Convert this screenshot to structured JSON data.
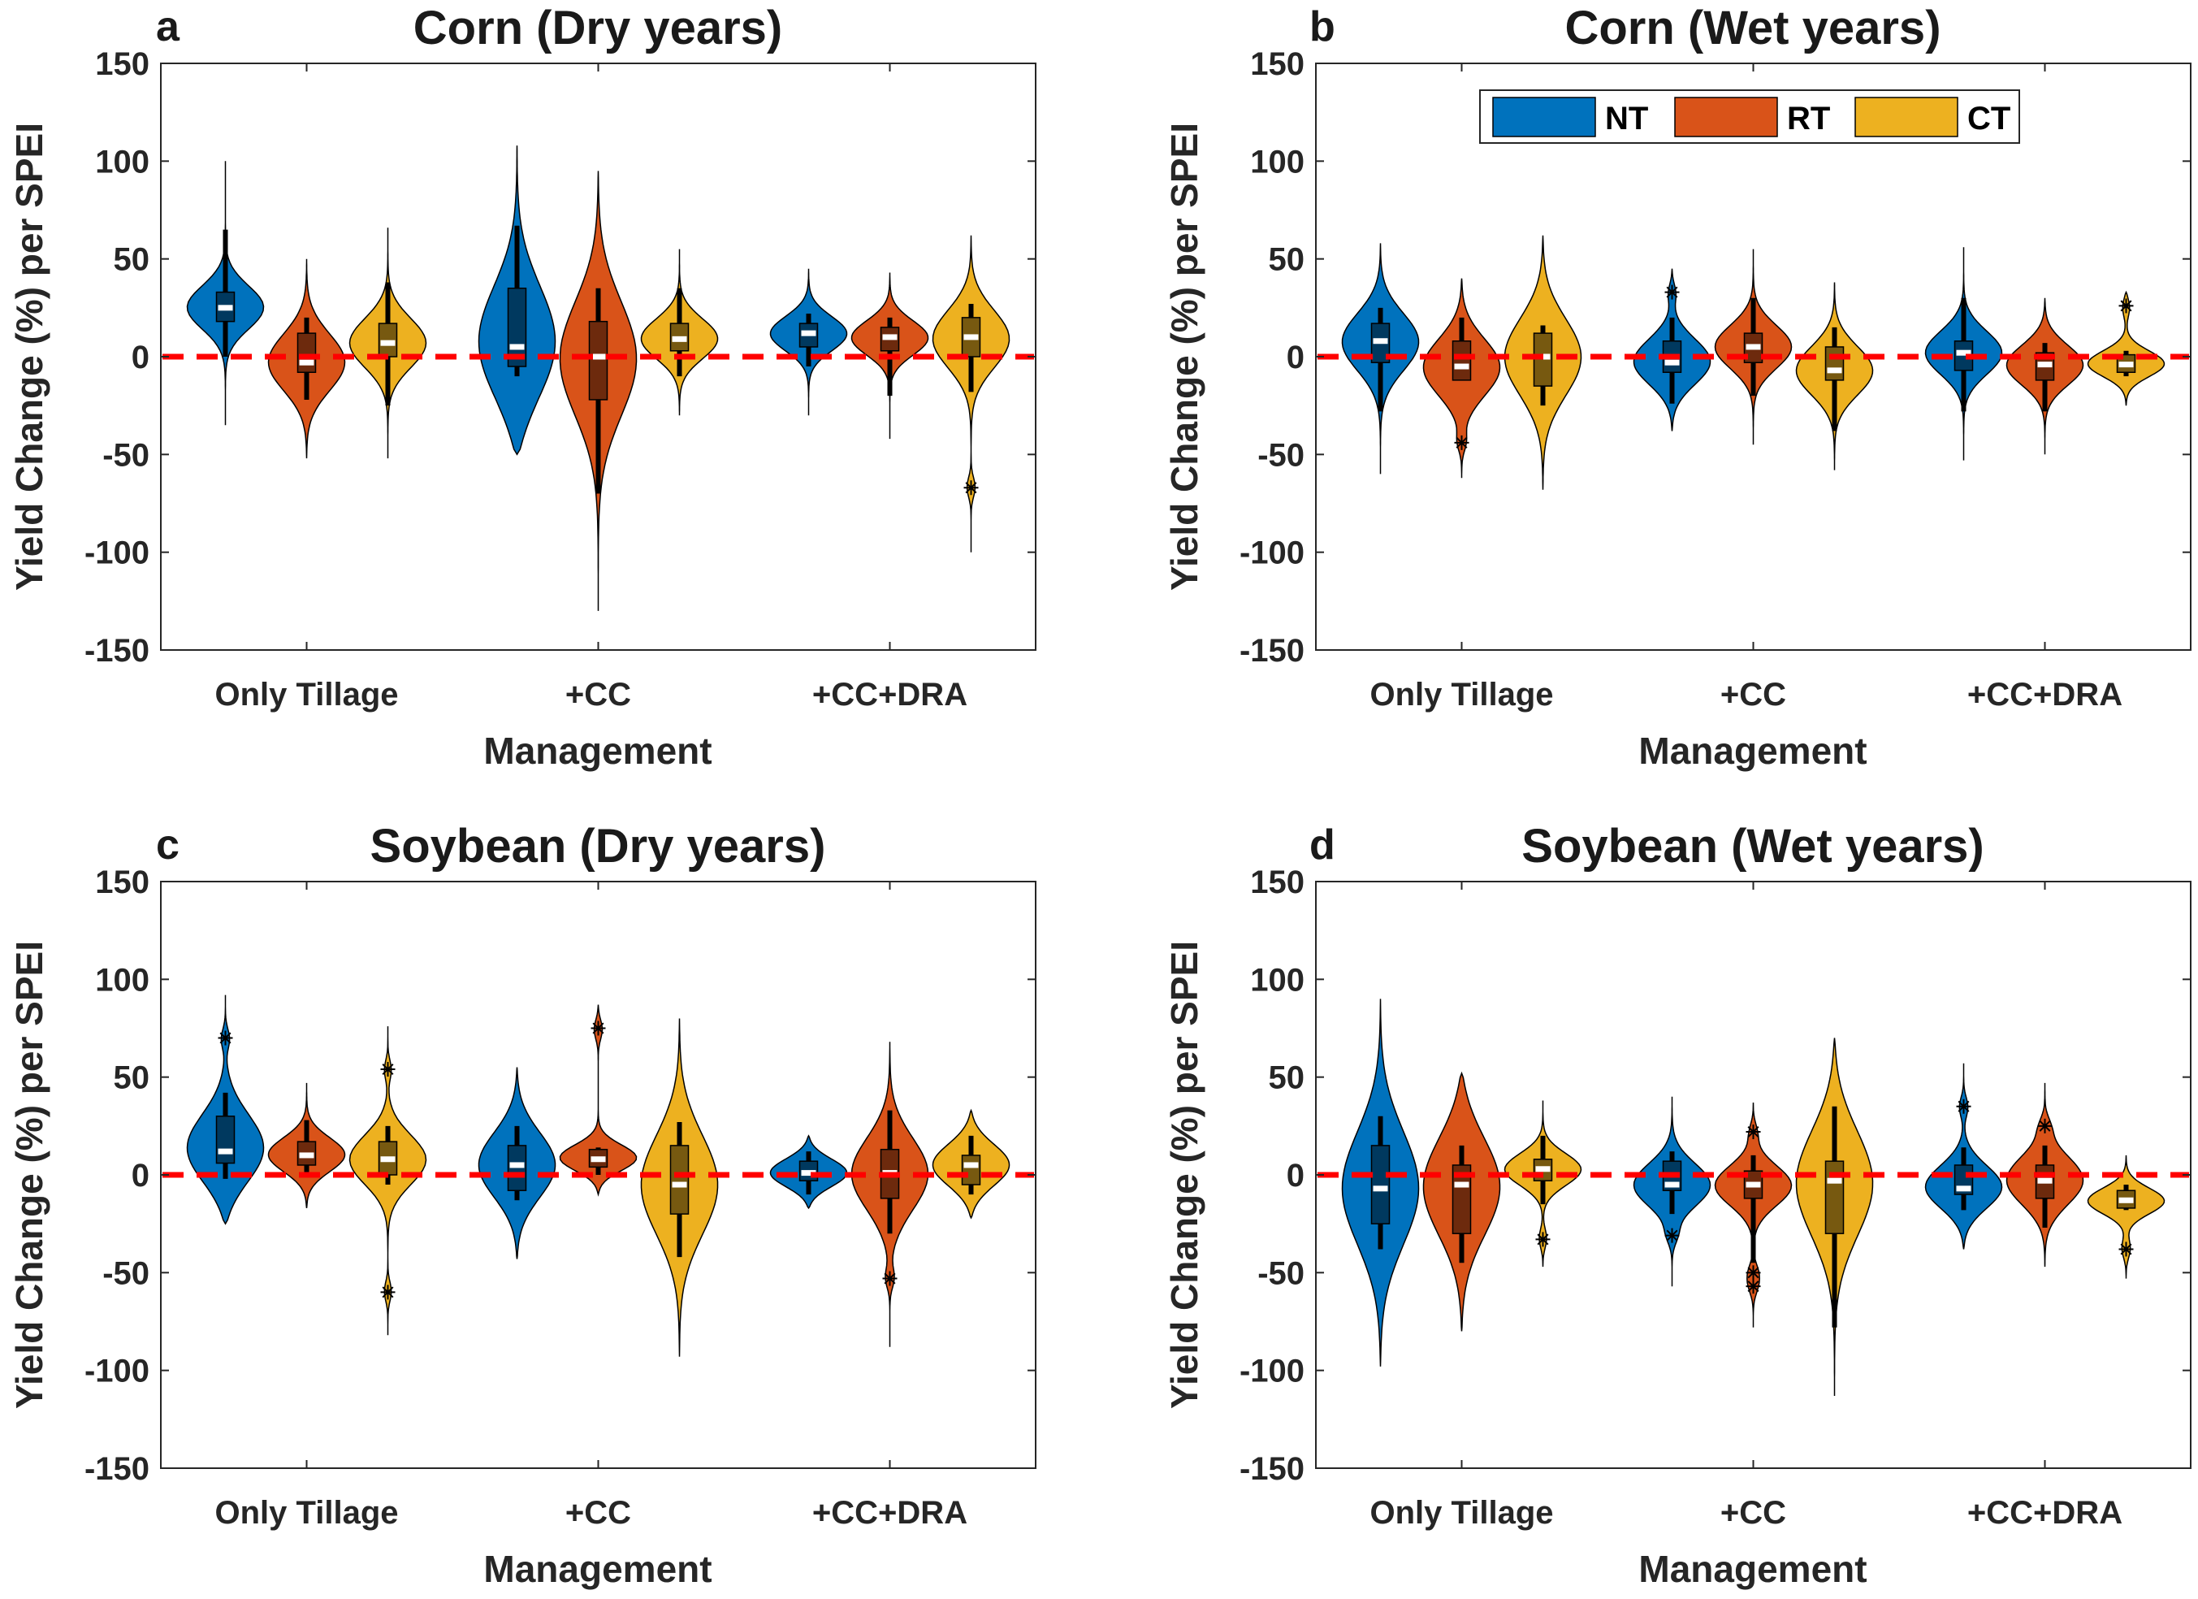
{
  "legend": [
    {
      "label": "NT",
      "color": "#0072BD"
    },
    {
      "label": "RT",
      "color": "#D95319"
    },
    {
      "label": "CT",
      "color": "#EDB120"
    }
  ],
  "reference_line_color": "#FF0000",
  "chart_data": [
    {
      "type": "violin",
      "panel_letter": "a",
      "title": "Corn (Dry years)",
      "xlabel": "Management",
      "ylabel": "Yield Change (%) per SPEI",
      "ylim": [
        -150,
        150
      ],
      "yticks": [
        150,
        100,
        50,
        0,
        -50,
        -100,
        -150
      ],
      "categories": [
        "Only Tillage",
        "+CC",
        "+CC+DRA"
      ],
      "reference_line_y": 0,
      "series": [
        {
          "name": "NT",
          "groups": [
            {
              "range": [
                -35,
                100
              ],
              "median": 25,
              "q1": 18,
              "q3": 33,
              "whisker": [
                0,
                65
              ],
              "outliers": []
            },
            {
              "range": [
                -50,
                108
              ],
              "median": 5,
              "q1": -5,
              "q3": 35,
              "whisker": [
                -10,
                67
              ],
              "outliers": []
            },
            {
              "range": [
                -30,
                45
              ],
              "median": 12,
              "q1": 5,
              "q3": 17,
              "whisker": [
                -5,
                22
              ],
              "outliers": []
            }
          ]
        },
        {
          "name": "RT",
          "groups": [
            {
              "range": [
                -52,
                50
              ],
              "median": -3,
              "q1": -8,
              "q3": 12,
              "whisker": [
                -22,
                20
              ],
              "outliers": []
            },
            {
              "range": [
                -130,
                95
              ],
              "median": 0,
              "q1": -22,
              "q3": 18,
              "whisker": [
                -70,
                35
              ],
              "outliers": []
            },
            {
              "range": [
                -42,
                43
              ],
              "median": 10,
              "q1": 3,
              "q3": 15,
              "whisker": [
                -20,
                20
              ],
              "outliers": []
            }
          ]
        },
        {
          "name": "CT",
          "groups": [
            {
              "range": [
                -52,
                66
              ],
              "median": 7,
              "q1": 0,
              "q3": 17,
              "whisker": [
                -25,
                38
              ],
              "outliers": []
            },
            {
              "range": [
                -30,
                55
              ],
              "median": 9,
              "q1": 3,
              "q3": 17,
              "whisker": [
                -10,
                35
              ],
              "outliers": []
            },
            {
              "range": [
                -100,
                62
              ],
              "median": 10,
              "q1": 0,
              "q3": 20,
              "whisker": [
                -18,
                27
              ],
              "outliers": [
                -67
              ]
            }
          ]
        }
      ]
    },
    {
      "type": "violin",
      "panel_letter": "b",
      "title": "Corn (Wet years)",
      "xlabel": "Management",
      "ylabel": "Yield Change (%) per SPEI",
      "ylim": [
        -150,
        150
      ],
      "yticks": [
        150,
        100,
        50,
        0,
        -50,
        -100,
        -150
      ],
      "categories": [
        "Only Tillage",
        "+CC",
        "+CC+DRA"
      ],
      "reference_line_y": 0,
      "series": [
        {
          "name": "NT",
          "groups": [
            {
              "range": [
                -60,
                58
              ],
              "median": 8,
              "q1": -3,
              "q3": 17,
              "whisker": [
                -28,
                25
              ],
              "outliers": []
            },
            {
              "range": [
                -38,
                45
              ],
              "median": -3,
              "q1": -8,
              "q3": 8,
              "whisker": [
                -24,
                20
              ],
              "outliers": [
                33
              ]
            },
            {
              "range": [
                -53,
                56
              ],
              "median": 2,
              "q1": -7,
              "q3": 8,
              "whisker": [
                -28,
                30
              ],
              "outliers": []
            }
          ]
        },
        {
          "name": "RT",
          "groups": [
            {
              "range": [
                -62,
                40
              ],
              "median": -5,
              "q1": -12,
              "q3": 8,
              "whisker": [
                -12,
                20
              ],
              "outliers": [
                -44
              ]
            },
            {
              "range": [
                -45,
                55
              ],
              "median": 5,
              "q1": -3,
              "q3": 12,
              "whisker": [
                -20,
                30
              ],
              "outliers": []
            },
            {
              "range": [
                -50,
                30
              ],
              "median": -4,
              "q1": -12,
              "q3": 2,
              "whisker": [
                -28,
                7
              ],
              "outliers": []
            }
          ]
        },
        {
          "name": "CT",
          "groups": [
            {
              "range": [
                -68,
                62
              ],
              "median": 0,
              "q1": -15,
              "q3": 12,
              "whisker": [
                -25,
                16
              ],
              "outliers": []
            },
            {
              "range": [
                -58,
                38
              ],
              "median": -7,
              "q1": -12,
              "q3": 5,
              "whisker": [
                -38,
                15
              ],
              "outliers": []
            },
            {
              "range": [
                -25,
                33
              ],
              "median": -4,
              "q1": -8,
              "q3": 1,
              "whisker": [
                -10,
                3
              ],
              "outliers": [
                26
              ]
            }
          ]
        }
      ]
    },
    {
      "type": "violin",
      "panel_letter": "c",
      "title": "Soybean (Dry years)",
      "xlabel": "Management",
      "ylabel": "Yield Change (%) per SPEI",
      "ylim": [
        -150,
        150
      ],
      "yticks": [
        150,
        100,
        50,
        0,
        -50,
        -100,
        -150
      ],
      "categories": [
        "Only Tillage",
        "+CC",
        "+CC+DRA"
      ],
      "reference_line_y": 0,
      "series": [
        {
          "name": "NT",
          "groups": [
            {
              "range": [
                -25,
                92
              ],
              "median": 12,
              "q1": 6,
              "q3": 30,
              "whisker": [
                -2,
                42
              ],
              "outliers": [
                70
              ]
            },
            {
              "range": [
                -43,
                55
              ],
              "median": 5,
              "q1": -8,
              "q3": 15,
              "whisker": [
                -13,
                25
              ],
              "outliers": []
            },
            {
              "range": [
                -17,
                20
              ],
              "median": 1,
              "q1": -3,
              "q3": 7,
              "whisker": [
                -10,
                12
              ],
              "outliers": []
            }
          ]
        },
        {
          "name": "RT",
          "groups": [
            {
              "range": [
                -17,
                47
              ],
              "median": 10,
              "q1": 5,
              "q3": 17,
              "whisker": [
                0,
                28
              ],
              "outliers": []
            },
            {
              "range": [
                -10,
                87
              ],
              "median": 8,
              "q1": 4,
              "q3": 13,
              "whisker": [
                0,
                14
              ],
              "outliers": [
                75
              ]
            },
            {
              "range": [
                -88,
                68
              ],
              "median": 1,
              "q1": -12,
              "q3": 13,
              "whisker": [
                -30,
                33
              ],
              "outliers": [
                -53
              ]
            }
          ]
        },
        {
          "name": "CT",
          "groups": [
            {
              "range": [
                -82,
                76
              ],
              "median": 8,
              "q1": 0,
              "q3": 17,
              "whisker": [
                -5,
                25
              ],
              "outliers": [
                54,
                -60
              ]
            },
            {
              "range": [
                -93,
                80
              ],
              "median": -5,
              "q1": -20,
              "q3": 15,
              "whisker": [
                -42,
                27
              ],
              "outliers": []
            },
            {
              "range": [
                -22,
                33
              ],
              "median": 5,
              "q1": -5,
              "q3": 10,
              "whisker": [
                -10,
                20
              ],
              "outliers": []
            }
          ]
        }
      ]
    },
    {
      "type": "violin",
      "panel_letter": "d",
      "title": "Soybean (Wet years)",
      "xlabel": "Management",
      "ylabel": "Yield Change (%) per SPEI",
      "ylim": [
        -150,
        150
      ],
      "yticks": [
        150,
        100,
        50,
        0,
        -50,
        -100,
        -150
      ],
      "categories": [
        "Only Tillage",
        "+CC",
        "+CC+DRA"
      ],
      "reference_line_y": 0,
      "series": [
        {
          "name": "NT",
          "groups": [
            {
              "range": [
                -98,
                90
              ],
              "median": -7,
              "q1": -25,
              "q3": 15,
              "whisker": [
                -38,
                30
              ],
              "outliers": []
            },
            {
              "range": [
                -57,
                40
              ],
              "median": -5,
              "q1": -8,
              "q3": 7,
              "whisker": [
                -20,
                12
              ],
              "outliers": [
                -31
              ]
            },
            {
              "range": [
                -38,
                57
              ],
              "median": -7,
              "q1": -10,
              "q3": 5,
              "whisker": [
                -18,
                14
              ],
              "outliers": [
                35
              ]
            }
          ]
        },
        {
          "name": "RT",
          "groups": [
            {
              "range": [
                -80,
                52
              ],
              "median": -5,
              "q1": -30,
              "q3": 5,
              "whisker": [
                -45,
                15
              ],
              "outliers": []
            },
            {
              "range": [
                -78,
                37
              ],
              "median": -5,
              "q1": -12,
              "q3": 2,
              "whisker": [
                -45,
                10
              ],
              "outliers": [
                22,
                -50,
                -57
              ]
            },
            {
              "range": [
                -47,
                47
              ],
              "median": -3,
              "q1": -12,
              "q3": 5,
              "whisker": [
                -27,
                15
              ],
              "outliers": [
                25
              ]
            }
          ]
        },
        {
          "name": "CT",
          "groups": [
            {
              "range": [
                -47,
                38
              ],
              "median": 3,
              "q1": -3,
              "q3": 8,
              "whisker": [
                -15,
                20
              ],
              "outliers": [
                -33
              ]
            },
            {
              "range": [
                -113,
                70
              ],
              "median": -3,
              "q1": -30,
              "q3": 7,
              "whisker": [
                -78,
                35
              ],
              "outliers": []
            },
            {
              "range": [
                -53,
                10
              ],
              "median": -13,
              "q1": -17,
              "q3": -8,
              "whisker": [
                -18,
                -5
              ],
              "outliers": [
                -38
              ]
            }
          ]
        }
      ]
    }
  ]
}
